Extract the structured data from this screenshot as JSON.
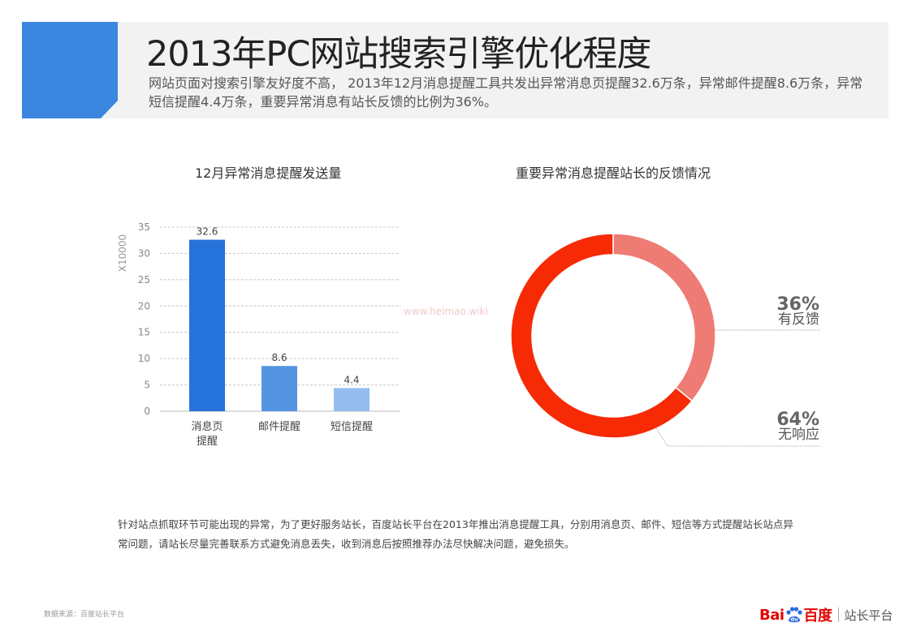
{
  "header": {
    "title": "2013年PC网站搜索引擎优化程度",
    "subtitle": "网站页面对搜索引擎友好度不高， 2013年12月消息提醒工具共发出异常消息页提醒32.6万条，异常邮件提醒8.6万条，异常短信提醒4.4万条，重要异常消息有站长反馈的比例为36%。"
  },
  "colors": {
    "accent_blue": "#3b87e0",
    "bar_1": "#2672db",
    "bar_2": "#5494e2",
    "bar_3": "#94bcee",
    "donut_feedback": "#ee7b74",
    "donut_no_response": "#f62b06"
  },
  "chart_data": [
    {
      "type": "bar",
      "title": "12月异常消息提醒发送量",
      "ylabel": "X10000",
      "categories": [
        "消息页\n提醒",
        "邮件提醒",
        "短信提醒"
      ],
      "values": [
        32.6,
        8.6,
        4.4
      ],
      "data_labels": [
        "32.6",
        "8.6",
        "4.4"
      ],
      "ylim": [
        0,
        35
      ],
      "yticks": [
        0,
        5,
        10,
        15,
        20,
        25,
        30,
        35
      ],
      "grid": true
    },
    {
      "type": "pie",
      "style": "donut",
      "title": "重要异常消息提醒站长的反馈情况",
      "slices": [
        {
          "label": "有反馈",
          "value": 36,
          "display": "36%"
        },
        {
          "label": "无响应",
          "value": 64,
          "display": "64%"
        }
      ]
    }
  ],
  "footer": {
    "note": "针对站点抓取环节可能出现的异常，为了更好服务站长，百度站长平台在2013年推出消息提醒工具，分别用消息页、邮件、短信等方式提醒站长站点异常问题，请站长尽量完善联系方式避免消息丢失，收到消息后按照推荐办法尽快解决问题，避免损失。",
    "source": "数据来源：百度站长平台",
    "brand_logo": "Bai du 百度",
    "brand_platform": "站长平台"
  },
  "watermark": "www.heimao.wiki"
}
